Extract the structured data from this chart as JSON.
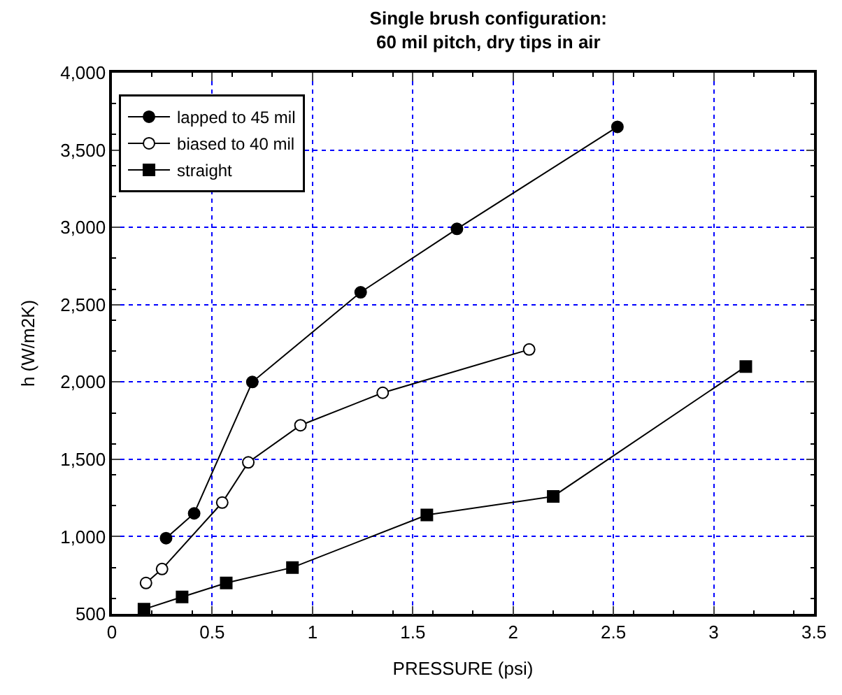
{
  "chart_data": {
    "type": "line",
    "title": "Single brush configuration:\n60 mil pitch, dry tips in air",
    "xlabel": "PRESSURE (psi)",
    "ylabel": "h (W/m2K)",
    "xlim": [
      0,
      3.5
    ],
    "xticks": [
      0,
      0.5,
      1,
      1.5,
      2,
      2.5,
      3,
      3.5
    ],
    "ylim": [
      500,
      4000
    ],
    "yticks": [
      {
        "value": 500,
        "label": "500"
      },
      {
        "value": 1000,
        "label": "1,000"
      },
      {
        "value": 1500,
        "label": "1,500"
      },
      {
        "value": 2000,
        "label": "2,000"
      },
      {
        "value": 2500,
        "label": "2,500"
      },
      {
        "value": 3000,
        "label": "3,000"
      },
      {
        "value": 3500,
        "label": "3,500"
      },
      {
        "value": 4000,
        "label": "4,000"
      }
    ],
    "grid": true,
    "legend": "top left",
    "line_style": "solid",
    "series": [
      {
        "name": "lapped to 45 mil",
        "color": "#000000",
        "marker": "circle",
        "x": [
          0.27,
          0.41,
          0.7,
          1.24,
          1.72,
          2.52
        ],
        "values": [
          990,
          1150,
          2000,
          2580,
          2990,
          3650
        ]
      },
      {
        "name": "biased to 40 mil",
        "color": "#000000",
        "marker": "circle-open",
        "x": [
          0.17,
          0.25,
          0.55,
          0.68,
          0.94,
          1.35,
          2.08
        ],
        "values": [
          700,
          790,
          1220,
          1480,
          1720,
          1930,
          2210
        ]
      },
      {
        "name": "straight",
        "color": "#000000",
        "marker": "square",
        "x": [
          0.16,
          0.35,
          0.57,
          0.9,
          1.57,
          2.2,
          3.16
        ],
        "values": [
          530,
          610,
          700,
          800,
          1140,
          1260,
          2100
        ]
      }
    ]
  }
}
